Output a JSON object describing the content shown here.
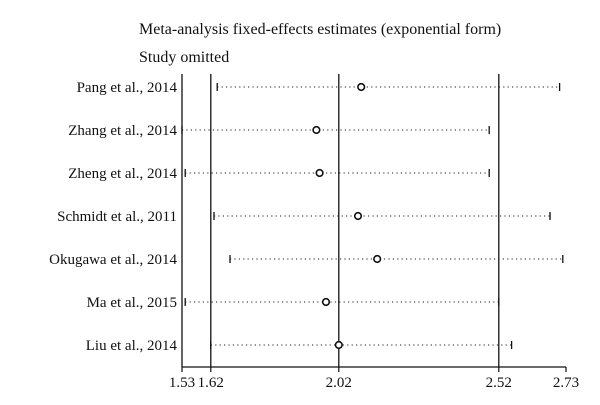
{
  "chart_data": {
    "type": "forest",
    "title": "Meta-analysis fixed-effects estimates (exponential form)",
    "subtitle": "Study omitted",
    "xlim": [
      1.53,
      2.73
    ],
    "x_ticks": [
      1.53,
      1.62,
      2.02,
      2.52,
      2.73
    ],
    "reference_lines": [
      1.62,
      2.02,
      2.52
    ],
    "studies": [
      {
        "label": "Pang et al., 2014",
        "estimate": 2.09,
        "lower": 1.64,
        "upper": 2.71
      },
      {
        "label": "Zhang et al., 2014",
        "estimate": 1.95,
        "lower": 1.53,
        "upper": 2.49
      },
      {
        "label": "Zheng et al., 2014",
        "estimate": 1.96,
        "lower": 1.54,
        "upper": 2.49
      },
      {
        "label": "Schmidt et al., 2011",
        "estimate": 2.08,
        "lower": 1.63,
        "upper": 2.68
      },
      {
        "label": "Okugawa et al., 2014",
        "estimate": 2.14,
        "lower": 1.68,
        "upper": 2.72
      },
      {
        "label": "Ma et al., 2015",
        "estimate": 1.98,
        "lower": 1.54,
        "upper": 2.52
      },
      {
        "label": "Liu et al., 2014",
        "estimate": 2.02,
        "lower": 1.62,
        "upper": 2.56
      }
    ]
  }
}
